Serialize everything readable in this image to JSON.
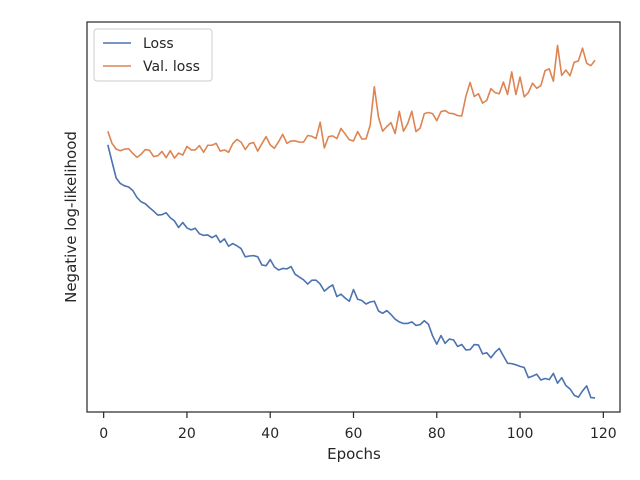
{
  "chart_data": {
    "type": "line",
    "title": "",
    "xlabel": "Epochs",
    "ylabel": "Negative log-likelihood",
    "xlim": [
      -4,
      124
    ],
    "ylim": [
      0,
      100
    ],
    "x_ticks": [
      0,
      20,
      40,
      60,
      80,
      100,
      120
    ],
    "y_ticks_shown": false,
    "grid": false,
    "legend_position": "top-left",
    "series": [
      {
        "name": "Loss",
        "color": "#4c72b0",
        "x": [
          1,
          2,
          3,
          4,
          5,
          6,
          7,
          8,
          9,
          10,
          11,
          12,
          13,
          14,
          15,
          16,
          17,
          18,
          19,
          20,
          21,
          22,
          23,
          24,
          25,
          26,
          27,
          28,
          29,
          30,
          31,
          32,
          33,
          34,
          35,
          36,
          37,
          38,
          39,
          40,
          41,
          42,
          43,
          44,
          45,
          46,
          47,
          48,
          49,
          50,
          51,
          52,
          53,
          54,
          55,
          56,
          57,
          58,
          59,
          60,
          61,
          62,
          63,
          64,
          65,
          66,
          67,
          68,
          69,
          70,
          71,
          72,
          73,
          74,
          75,
          76,
          77,
          78,
          79,
          80,
          81,
          82,
          83,
          84,
          85,
          86,
          87,
          88,
          89,
          90,
          91,
          92,
          93,
          94,
          95,
          96,
          97,
          98,
          99,
          100,
          101,
          102,
          103,
          104,
          105,
          106,
          107,
          108,
          109,
          110,
          111,
          112,
          113,
          114,
          115,
          116,
          117,
          118
        ],
        "values": [
          68.5,
          64.2,
          60.0,
          58.6,
          58.0,
          57.7,
          56.8,
          55.0,
          53.9,
          53.4,
          52.4,
          51.5,
          50.5,
          50.6,
          51.1,
          49.8,
          49.0,
          47.3,
          48.6,
          47.2,
          46.7,
          47.1,
          45.7,
          45.3,
          45.4,
          44.7,
          45.3,
          43.5,
          44.4,
          42.5,
          43.2,
          42.6,
          41.9,
          39.8,
          40.0,
          40.1,
          39.8,
          37.7,
          37.5,
          39.1,
          37.2,
          36.4,
          36.8,
          36.7,
          37.3,
          35.3,
          34.6,
          33.9,
          32.8,
          33.8,
          33.8,
          32.8,
          31.0,
          31.9,
          32.6,
          29.6,
          30.2,
          29.2,
          28.4,
          31.4,
          28.9,
          28.6,
          27.7,
          28.2,
          28.4,
          25.9,
          25.3,
          26.0,
          25.0,
          23.8,
          23.1,
          22.7,
          22.7,
          23.1,
          22.2,
          22.4,
          23.4,
          22.5,
          19.5,
          17.4,
          19.6,
          17.6,
          18.7,
          18.5,
          16.8,
          17.3,
          15.9,
          16.0,
          17.3,
          17.2,
          14.9,
          15.2,
          13.9,
          15.3,
          16.3,
          14.4,
          12.5,
          12.4,
          12.1,
          11.7,
          11.4,
          8.8,
          9.2,
          9.7,
          8.2,
          8.6,
          8.3,
          9.9,
          7.4,
          8.8,
          6.8,
          5.9,
          4.3,
          3.8,
          5.4,
          6.7,
          3.7,
          3.6
        ]
      },
      {
        "name": "Val. loss",
        "color": "#dd8452",
        "x": [
          1,
          2,
          3,
          4,
          5,
          6,
          7,
          8,
          9,
          10,
          11,
          12,
          13,
          14,
          15,
          16,
          17,
          18,
          19,
          20,
          21,
          22,
          23,
          24,
          25,
          26,
          27,
          28,
          29,
          30,
          31,
          32,
          33,
          34,
          35,
          36,
          37,
          38,
          39,
          40,
          41,
          42,
          43,
          44,
          45,
          46,
          47,
          48,
          49,
          50,
          51,
          52,
          53,
          54,
          55,
          56,
          57,
          58,
          59,
          60,
          61,
          62,
          63,
          64,
          65,
          66,
          67,
          68,
          69,
          70,
          71,
          72,
          73,
          74,
          75,
          76,
          77,
          78,
          79,
          80,
          81,
          82,
          83,
          84,
          85,
          86,
          87,
          88,
          89,
          90,
          91,
          92,
          93,
          94,
          95,
          96,
          97,
          98,
          99,
          100,
          101,
          102,
          103,
          104,
          105,
          106,
          107,
          108,
          109,
          110,
          111,
          112,
          113,
          114,
          115,
          116,
          117,
          118
        ],
        "values": [
          72.0,
          68.9,
          67.4,
          67.0,
          67.4,
          67.5,
          66.3,
          65.3,
          66.1,
          67.3,
          67.1,
          65.5,
          65.7,
          66.8,
          65.2,
          67.0,
          65.1,
          66.4,
          65.9,
          68.1,
          67.2,
          67.2,
          68.3,
          66.6,
          68.4,
          68.4,
          68.9,
          66.9,
          67.2,
          66.6,
          68.8,
          69.9,
          69.2,
          67.3,
          68.8,
          69.1,
          66.9,
          68.8,
          70.6,
          68.5,
          67.6,
          69.3,
          71.2,
          68.9,
          69.5,
          69.5,
          69.2,
          69.2,
          70.9,
          70.7,
          70.1,
          74.3,
          67.7,
          70.6,
          70.8,
          70.1,
          72.7,
          71.3,
          69.8,
          69.5,
          71.9,
          70.0,
          70.0,
          73.5,
          83.4,
          75.6,
          72.0,
          73.2,
          74.2,
          71.4,
          77.1,
          72.0,
          73.9,
          77.1,
          71.9,
          72.8,
          76.5,
          76.8,
          76.5,
          74.7,
          77.0,
          77.3,
          76.6,
          76.5,
          76.0,
          75.9,
          81.0,
          84.5,
          80.9,
          81.6,
          79.2,
          79.9,
          82.9,
          81.9,
          81.6,
          84.6,
          81.4,
          87.2,
          81.4,
          85.9,
          80.8,
          81.9,
          84.3,
          83.0,
          83.7,
          87.5,
          88.0,
          84.8,
          94.0,
          86.3,
          87.7,
          86.2,
          89.7,
          90.0,
          93.3,
          89.4,
          88.8,
          90.2
        ]
      }
    ]
  }
}
